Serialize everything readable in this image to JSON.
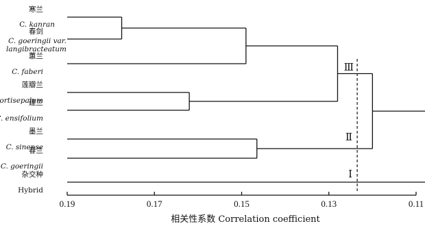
{
  "chart_data": {
    "type": "dendrogram",
    "xlabel": "相关性系数 Correlation coefficient",
    "x_ticks": [
      0.19,
      0.17,
      0.15,
      0.13,
      0.11
    ],
    "xlim": [
      0.19,
      0.11
    ],
    "leaves": [
      {
        "name_cn": "寒兰",
        "name_latin": "C. kanran"
      },
      {
        "name_cn": "春剑",
        "name_latin": "C. goeringii var. langibracteatum"
      },
      {
        "name_cn": "蕙兰",
        "name_latin": "C. faberi"
      },
      {
        "name_cn": "莲瓣兰",
        "name_latin": "C. tortisepalum"
      },
      {
        "name_cn": "建兰",
        "name_latin": "C. ensifolium"
      },
      {
        "name_cn": "墨兰",
        "name_latin": "C. sinense"
      },
      {
        "name_cn": "春兰",
        "name_latin": "C. goeringii"
      },
      {
        "name_cn": "杂交种",
        "name_latin": "Hybrid"
      }
    ],
    "merges": [
      {
        "children": [
          "寒兰",
          "春剑"
        ],
        "height": 0.1775
      },
      {
        "children": [
          "寒兰+春剑",
          "蕙兰"
        ],
        "height": 0.149
      },
      {
        "children": [
          "莲瓣兰",
          "建兰"
        ],
        "height": 0.162
      },
      {
        "children": [
          "寒兰+春剑+蕙兰",
          "莲瓣兰+建兰"
        ],
        "height": 0.128
      },
      {
        "children": [
          "墨兰",
          "春兰"
        ],
        "height": 0.1465
      },
      {
        "children": [
          "group III",
          "墨兰+春兰"
        ],
        "height": 0.12
      },
      {
        "children": [
          "group III+II",
          "杂交种"
        ],
        "height": 0.11
      }
    ],
    "cutoff": 0.1235,
    "groups": [
      {
        "label": "Ⅲ"
      },
      {
        "label": "Ⅱ"
      },
      {
        "label": "Ⅰ"
      }
    ]
  }
}
